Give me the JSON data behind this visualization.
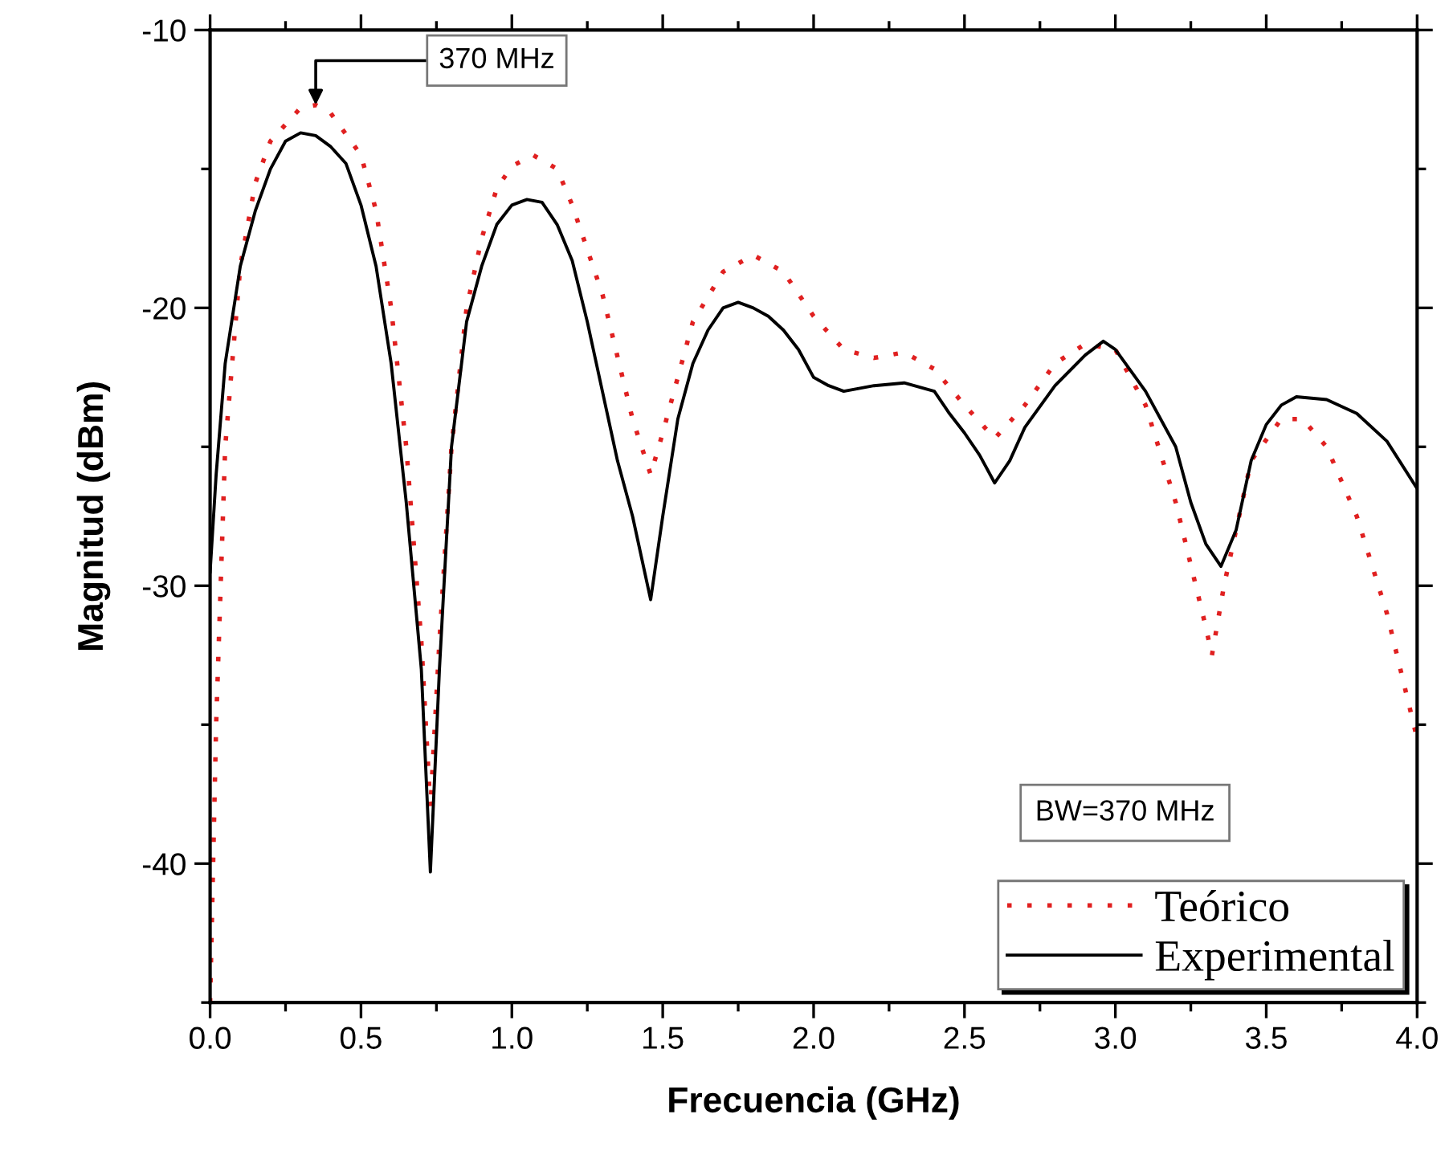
{
  "chart_data": {
    "type": "line",
    "xlabel": "Frecuencia (GHz)",
    "ylabel": "Magnitud (dBm)",
    "xlim": [
      0,
      4.0
    ],
    "ylim": [
      -45,
      -10
    ],
    "xticks": [
      {
        "value": 0,
        "label": "0.0"
      },
      0.5,
      {
        "value": 1,
        "label": "1.0"
      },
      1.5,
      {
        "value": 2,
        "label": "2.0"
      },
      2.5,
      {
        "value": 3,
        "label": "3.0"
      },
      3.5,
      {
        "value": 4,
        "label": "4.0"
      }
    ],
    "yticks": [
      -40,
      -30,
      -20,
      -10
    ],
    "grid": false,
    "legend": "bottom right",
    "annotations": [
      {
        "text": "370 MHz",
        "x": 0.35,
        "y": -12.7
      },
      "BW=370 MHz"
    ],
    "series": [
      {
        "name": "Teórico",
        "color": "#e02020",
        "line_style": "dotted",
        "x": [
          0.0,
          0.02,
          0.05,
          0.1,
          0.15,
          0.2,
          0.3,
          0.35,
          0.4,
          0.5,
          0.55,
          0.6,
          0.65,
          0.7,
          0.73,
          0.76,
          0.8,
          0.85,
          0.9,
          0.95,
          1.0,
          1.07,
          1.15,
          1.2,
          1.3,
          1.4,
          1.46,
          1.5,
          1.6,
          1.7,
          1.8,
          1.9,
          2.0,
          2.1,
          2.2,
          2.3,
          2.4,
          2.5,
          2.6,
          2.7,
          2.8,
          2.9,
          3.0,
          3.1,
          3.2,
          3.3,
          3.32,
          3.36,
          3.45,
          3.55,
          3.62,
          3.7,
          3.8,
          3.9,
          4.0
        ],
        "values": [
          -45,
          -35,
          -25,
          -18.5,
          -15.5,
          -14,
          -12.8,
          -12.7,
          -13,
          -14.5,
          -16.5,
          -20,
          -25,
          -32,
          -38,
          -32,
          -25,
          -20,
          -17.5,
          -15.7,
          -14.9,
          -14.5,
          -15,
          -16.3,
          -19.5,
          -24,
          -26,
          -24.5,
          -20.5,
          -18.7,
          -18.1,
          -18.7,
          -20.3,
          -21.5,
          -21.8,
          -21.6,
          -22.2,
          -23.5,
          -24.7,
          -23.5,
          -22,
          -21.3,
          -21.5,
          -23.5,
          -27,
          -31.5,
          -32.5,
          -30,
          -25.5,
          -24,
          -24,
          -25,
          -27.5,
          -31,
          -35.5
        ]
      },
      {
        "name": "Experimental",
        "color": "#000000",
        "line_style": "solid",
        "x": [
          0.0,
          0.02,
          0.05,
          0.1,
          0.15,
          0.2,
          0.25,
          0.3,
          0.35,
          0.4,
          0.45,
          0.5,
          0.55,
          0.6,
          0.65,
          0.7,
          0.73,
          0.76,
          0.8,
          0.85,
          0.9,
          0.95,
          1.0,
          1.05,
          1.1,
          1.15,
          1.2,
          1.25,
          1.3,
          1.35,
          1.4,
          1.46,
          1.5,
          1.55,
          1.6,
          1.65,
          1.7,
          1.75,
          1.8,
          1.85,
          1.9,
          1.95,
          2.0,
          2.05,
          2.1,
          2.2,
          2.3,
          2.4,
          2.45,
          2.5,
          2.55,
          2.6,
          2.65,
          2.7,
          2.8,
          2.9,
          2.96,
          3.0,
          3.1,
          3.2,
          3.25,
          3.3,
          3.35,
          3.4,
          3.45,
          3.5,
          3.55,
          3.6,
          3.7,
          3.8,
          3.9,
          4.0
        ],
        "values": [
          -29.5,
          -26,
          -22,
          -18.5,
          -16.5,
          -15,
          -14,
          -13.7,
          -13.8,
          -14.2,
          -14.8,
          -16.3,
          -18.5,
          -22,
          -27,
          -33,
          -40.3,
          -33,
          -25,
          -20.5,
          -18.5,
          -17,
          -16.3,
          -16.1,
          -16.2,
          -17,
          -18.3,
          -20.5,
          -23,
          -25.5,
          -27.5,
          -30.5,
          -27.5,
          -24,
          -22,
          -20.8,
          -20,
          -19.8,
          -20,
          -20.3,
          -20.8,
          -21.5,
          -22.5,
          -22.8,
          -23,
          -22.8,
          -22.7,
          -23,
          -23.8,
          -24.5,
          -25.3,
          -26.3,
          -25.5,
          -24.3,
          -22.8,
          -21.7,
          -21.2,
          -21.5,
          -23,
          -25,
          -27,
          -28.5,
          -29.3,
          -28,
          -25.5,
          -24.2,
          -23.5,
          -23.2,
          -23.3,
          -23.8,
          -24.8,
          -26.5
        ]
      }
    ]
  }
}
